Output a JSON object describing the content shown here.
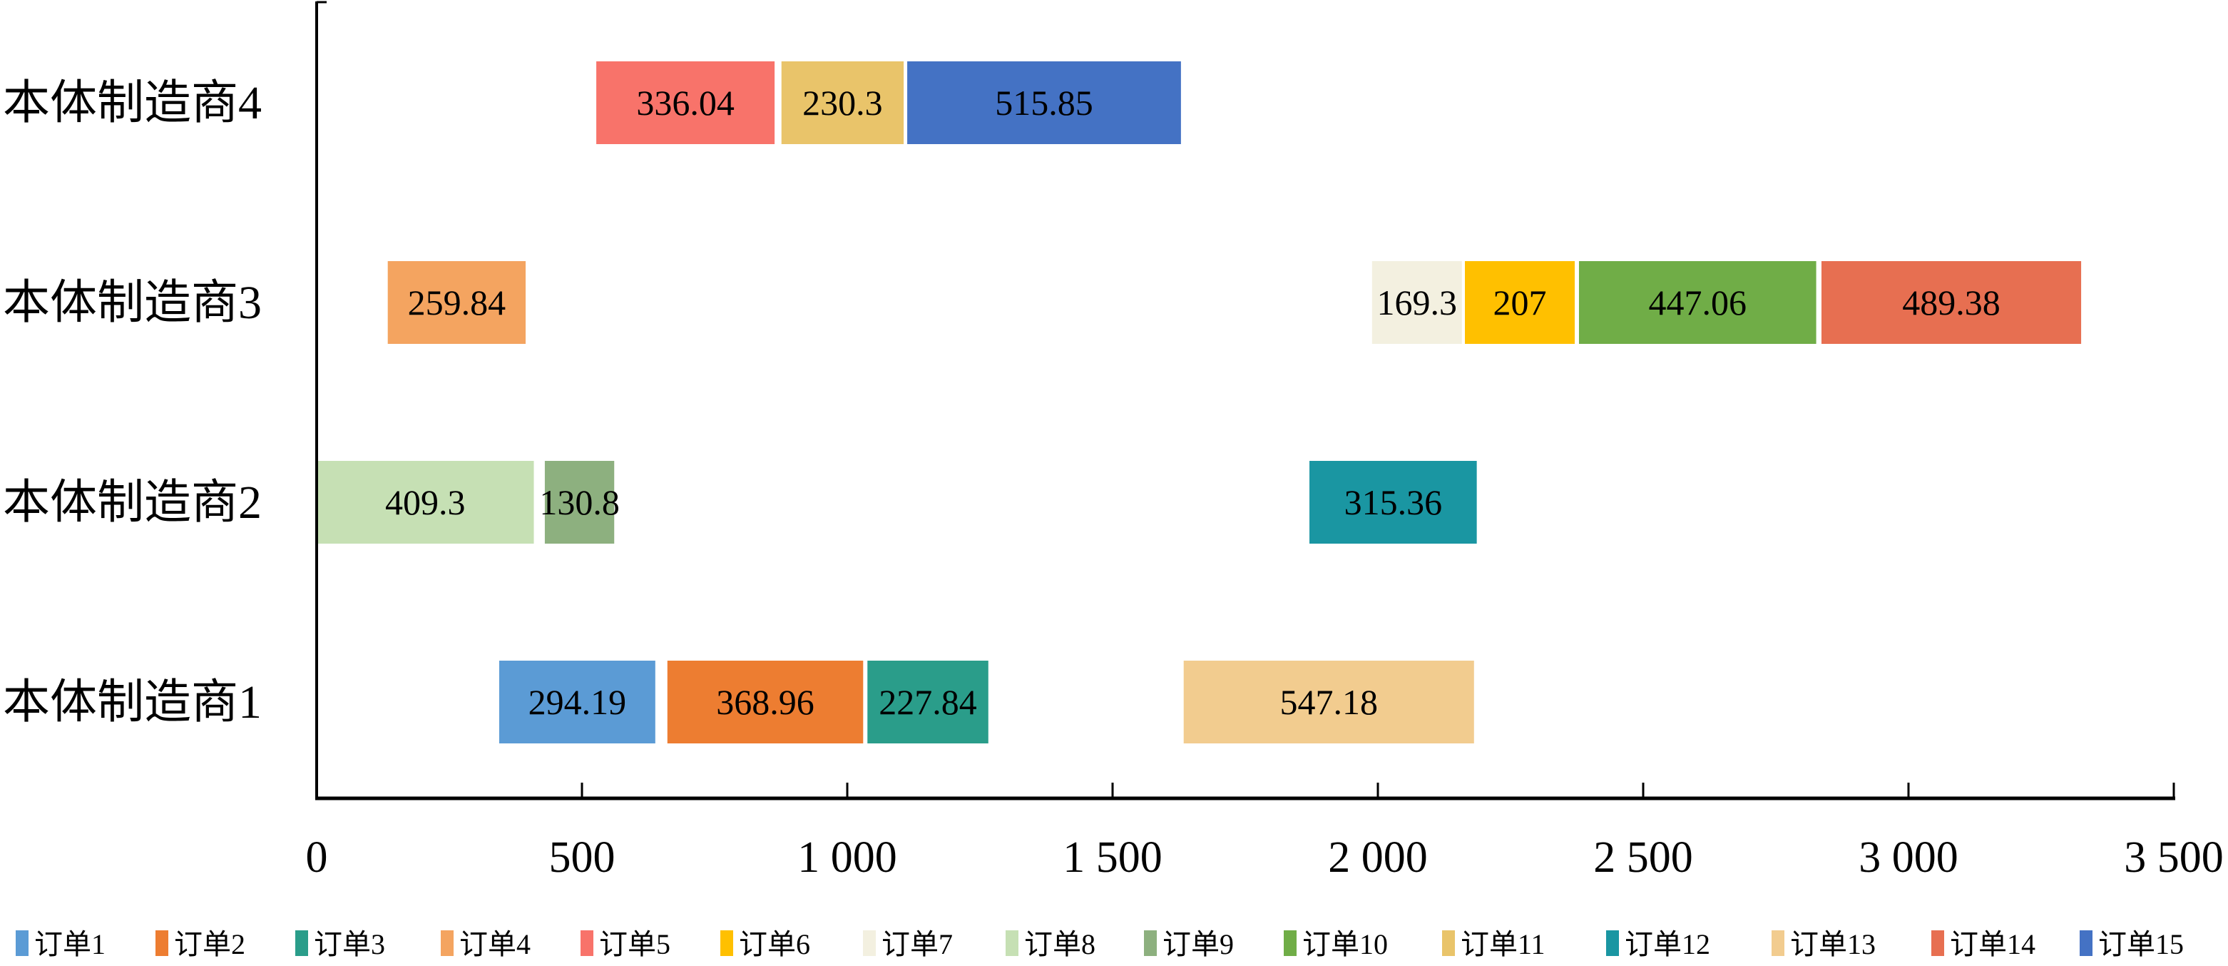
{
  "chart_data": {
    "type": "bar",
    "orientation": "horizontal-gantt",
    "title": "",
    "xlabel": "",
    "ylabel": "",
    "xlim": [
      0,
      3500
    ],
    "xticks": [
      0,
      500,
      1000,
      1500,
      2000,
      2500,
      3000,
      3500
    ],
    "xtick_labels": [
      "0",
      "500",
      "1 000",
      "1 500",
      "2 000",
      "2 500",
      "3 000",
      "3 500"
    ],
    "categories": [
      "本体制造商1",
      "本体制造商2",
      "本体制造商3",
      "本体制造商4"
    ],
    "legend_position": "bottom",
    "series": [
      {
        "name": "订单1",
        "color": "#5B9BD5",
        "category": "本体制造商1",
        "start": 344,
        "value": 294.19,
        "label": "294.19"
      },
      {
        "name": "订单2",
        "color": "#ED7D31",
        "category": "本体制造商1",
        "start": 661,
        "value": 368.96,
        "label": "368.96"
      },
      {
        "name": "订单3",
        "color": "#2A9D8A",
        "category": "本体制造商1",
        "start": 1038,
        "value": 227.84,
        "label": "227.84"
      },
      {
        "name": "订单4",
        "color": "#F4A460",
        "category": "本体制造商3",
        "start": 134,
        "value": 259.84,
        "label": "259.84"
      },
      {
        "name": "订单5",
        "color": "#F8736A",
        "category": "本体制造商4",
        "start": 527,
        "value": 336.04,
        "label": "336.04"
      },
      {
        "name": "订单6",
        "color": "#FFC000",
        "category": "本体制造商3",
        "start": 2164,
        "value": 207,
        "label": "207"
      },
      {
        "name": "订单7",
        "color": "#F3F0E0",
        "category": "本体制造商3",
        "start": 1989,
        "value": 169.3,
        "label": "169.3"
      },
      {
        "name": "订单8",
        "color": "#C6E0B4",
        "category": "本体制造商2",
        "start": 0,
        "value": 409.3,
        "label": "409.3"
      },
      {
        "name": "订单9",
        "color": "#8DB07F",
        "category": "本体制造商2",
        "start": 430,
        "value": 130.8,
        "label": "130.8"
      },
      {
        "name": "订单10",
        "color": "#70AD47",
        "category": "本体制造商3",
        "start": 2379,
        "value": 447.06,
        "label": "447.06"
      },
      {
        "name": "订单11",
        "color": "#E9C46A",
        "category": "本体制造商4",
        "start": 876,
        "value": 230.3,
        "label": "230.3"
      },
      {
        "name": "订单12",
        "color": "#1A96A2",
        "category": "本体制造商2",
        "start": 1871,
        "value": 315.36,
        "label": "315.36"
      },
      {
        "name": "订单13",
        "color": "#F2CC8F",
        "category": "本体制造商1",
        "start": 1634,
        "value": 547.18,
        "label": "547.18"
      },
      {
        "name": "订单14",
        "color": "#E76F51",
        "category": "本体制造商3",
        "start": 2836,
        "value": 489.38,
        "label": "489.38"
      },
      {
        "name": "订单15",
        "color": "#4472C4",
        "category": "本体制造商4",
        "start": 1113,
        "value": 515.85,
        "label": "515.85"
      }
    ]
  }
}
